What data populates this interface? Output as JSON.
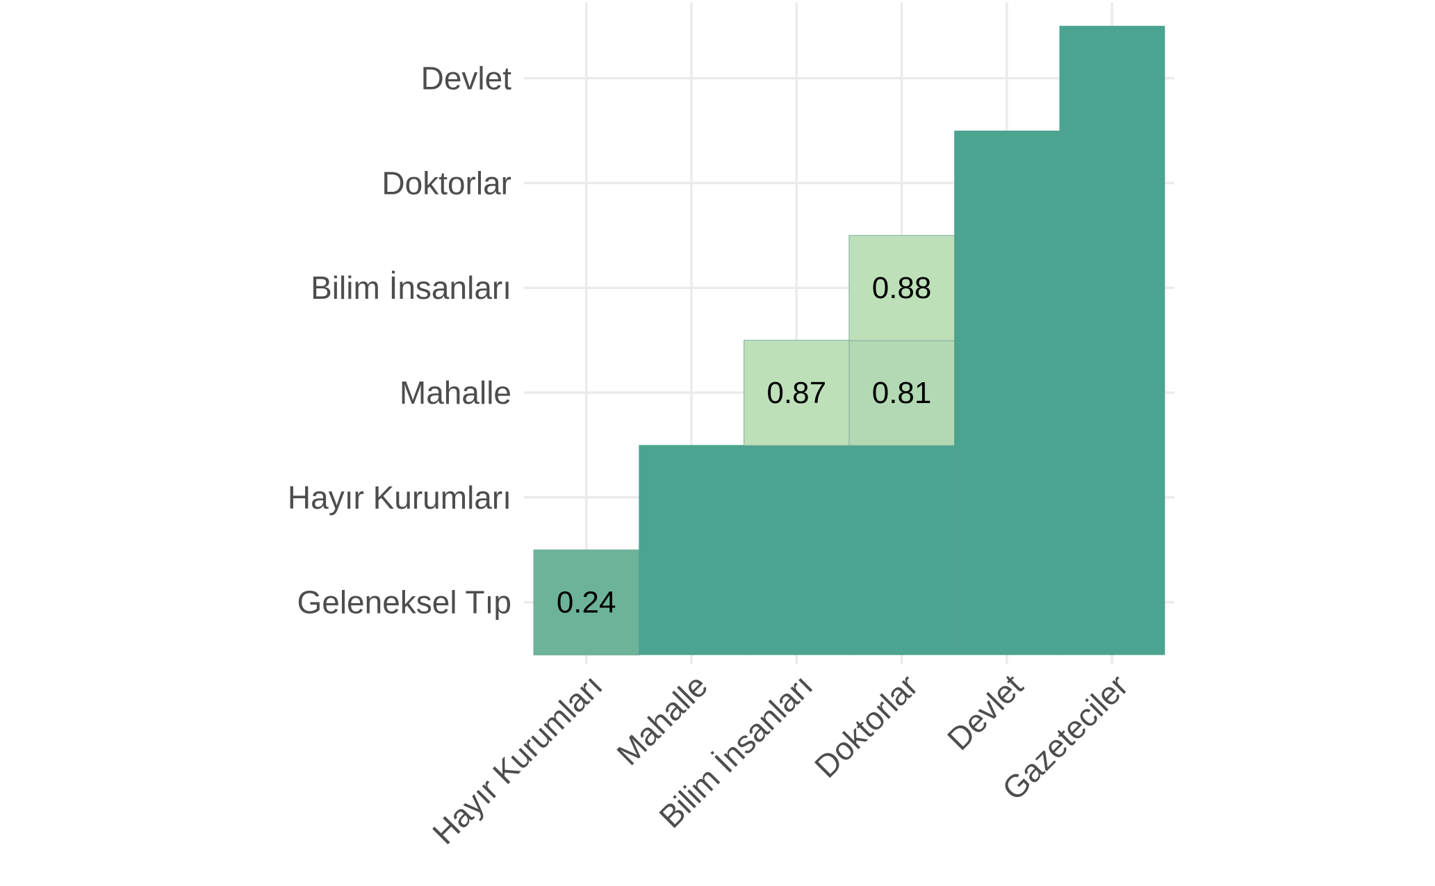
{
  "chart_data": {
    "type": "heatmap",
    "x_categories": [
      "Hayır Kurumları",
      "Mahalle",
      "Bilim İnsanları",
      "Doktorlar",
      "Devlet",
      "Gazeteciler"
    ],
    "y_categories": [
      "Geleneksel Tıp",
      "Hayır Kurumları",
      "Mahalle",
      "Bilim İnsanları",
      "Doktorlar",
      "Devlet"
    ],
    "cells": [
      {
        "x": "Hayır Kurumları",
        "y": "Geleneksel Tıp",
        "value": 0.24,
        "label": "0.24",
        "color": "#6cb39a"
      },
      {
        "x": "Mahalle",
        "y": "Geleneksel Tıp",
        "value": null,
        "label": "",
        "color": "#4ca38f"
      },
      {
        "x": "Bilim İnsanları",
        "y": "Geleneksel Tıp",
        "value": null,
        "label": "",
        "color": "#4ca38f"
      },
      {
        "x": "Doktorlar",
        "y": "Geleneksel Tıp",
        "value": null,
        "label": "",
        "color": "#4ca38f"
      },
      {
        "x": "Devlet",
        "y": "Geleneksel Tıp",
        "value": null,
        "label": "",
        "color": "#4ca38f"
      },
      {
        "x": "Gazeteciler",
        "y": "Geleneksel Tıp",
        "value": null,
        "label": "",
        "color": "#4ca38f"
      },
      {
        "x": "Mahalle",
        "y": "Hayır Kurumları",
        "value": null,
        "label": "",
        "color": "#4ca38f"
      },
      {
        "x": "Bilim İnsanları",
        "y": "Hayır Kurumları",
        "value": null,
        "label": "",
        "color": "#4ca38f"
      },
      {
        "x": "Doktorlar",
        "y": "Hayır Kurumları",
        "value": null,
        "label": "",
        "color": "#4ca38f"
      },
      {
        "x": "Devlet",
        "y": "Hayır Kurumları",
        "value": null,
        "label": "",
        "color": "#4ca38f"
      },
      {
        "x": "Gazeteciler",
        "y": "Hayır Kurumları",
        "value": null,
        "label": "",
        "color": "#4ca38f"
      },
      {
        "x": "Bilim İnsanları",
        "y": "Mahalle",
        "value": 0.87,
        "label": "0.87",
        "color": "#bde0b9"
      },
      {
        "x": "Doktorlar",
        "y": "Mahalle",
        "value": 0.81,
        "label": "0.81",
        "color": "#b2d9b4"
      },
      {
        "x": "Devlet",
        "y": "Mahalle",
        "value": null,
        "label": "",
        "color": "#4ca38f"
      },
      {
        "x": "Gazeteciler",
        "y": "Mahalle",
        "value": null,
        "label": "",
        "color": "#4ca38f"
      },
      {
        "x": "Doktorlar",
        "y": "Bilim İnsanları",
        "value": 0.88,
        "label": "0.88",
        "color": "#bde0b9"
      },
      {
        "x": "Devlet",
        "y": "Bilim İnsanları",
        "value": null,
        "label": "",
        "color": "#4ca38f"
      },
      {
        "x": "Gazeteciler",
        "y": "Bilim İnsanları",
        "value": null,
        "label": "",
        "color": "#4ca38f"
      },
      {
        "x": "Devlet",
        "y": "Doktorlar",
        "value": null,
        "label": "",
        "color": "#4ca38f"
      },
      {
        "x": "Gazeteciler",
        "y": "Doktorlar",
        "value": null,
        "label": "",
        "color": "#4ca38f"
      },
      {
        "x": "Gazeteciler",
        "y": "Devlet",
        "value": null,
        "label": "",
        "color": "#4ca38f"
      }
    ],
    "grid": true,
    "legend": "none",
    "gridline_color": "#ebebeb"
  }
}
